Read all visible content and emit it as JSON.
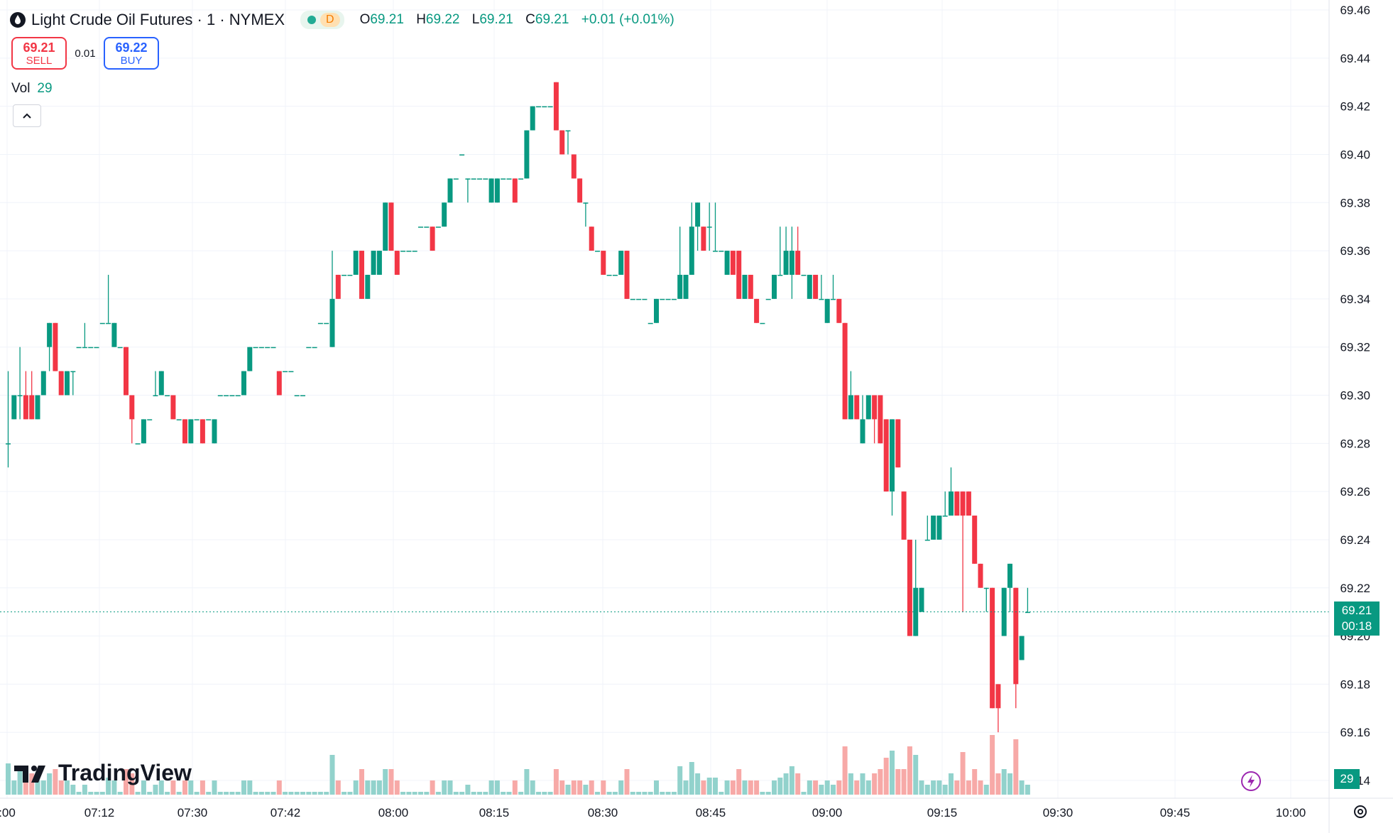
{
  "header": {
    "title": "Light Crude Oil Futures · 1 · NYMEX",
    "interval_badge": "D",
    "ohlc": [
      {
        "k": "O",
        "v": "69.21"
      },
      {
        "k": "H",
        "v": "69.22"
      },
      {
        "k": "L",
        "v": "69.21"
      },
      {
        "k": "C",
        "v": "69.21"
      }
    ],
    "change": "+0.01 (+0.01%)"
  },
  "trade": {
    "sell_price": "69.21",
    "sell_label": "SELL",
    "spread": "0.01",
    "buy_price": "69.22",
    "buy_label": "BUY"
  },
  "volume_legend": {
    "label": "Vol",
    "value": "29"
  },
  "collapse_icon": "chevron-up-icon",
  "logo_text": "TradingView",
  "last_price_tag": {
    "price": "69.21",
    "countdown": "00:18"
  },
  "volume_tag": "29",
  "colors": {
    "up": "#089981",
    "down": "#f23645",
    "up_vol": "#92d2cc",
    "down_vol": "#f7a9a7",
    "grid": "#f0f3fa"
  },
  "chart_data": {
    "type": "candlestick",
    "price_axis_ticks": [
      "69.46",
      "69.44",
      "69.42",
      "69.40",
      "69.38",
      "69.36",
      "69.34",
      "69.32",
      "69.30",
      "69.28",
      "69.26",
      "69.24",
      "69.22",
      "69.20",
      "69.18",
      "69.16",
      "69.14"
    ],
    "ylim": [
      69.14,
      69.46
    ],
    "time_axis_ticks": [
      ":00",
      "07:12",
      "07:30",
      "07:42",
      "08:00",
      "08:15",
      "08:30",
      "08:45",
      "09:00",
      "09:15",
      "09:30",
      "09:45",
      "10:00"
    ],
    "last_price": 69.21,
    "candles": [
      {
        "o": 69.28,
        "h": 69.31,
        "l": 69.27,
        "c": 69.28
      },
      {
        "o": 69.29,
        "h": 69.3,
        "l": 69.29,
        "c": 69.3
      },
      {
        "o": 69.3,
        "h": 69.32,
        "l": 69.29,
        "c": 69.3
      },
      {
        "o": 69.3,
        "h": 69.31,
        "l": 69.29,
        "c": 69.29
      },
      {
        "o": 69.3,
        "h": 69.31,
        "l": 69.29,
        "c": 69.29
      },
      {
        "o": 69.29,
        "h": 69.3,
        "l": 69.29,
        "c": 69.3
      },
      {
        "o": 69.3,
        "h": 69.31,
        "l": 69.3,
        "c": 69.31
      },
      {
        "o": 69.32,
        "h": 69.33,
        "l": 69.31,
        "c": 69.33
      },
      {
        "o": 69.33,
        "h": 69.33,
        "l": 69.31,
        "c": 69.31
      },
      {
        "o": 69.31,
        "h": 69.31,
        "l": 69.3,
        "c": 69.3
      },
      {
        "o": 69.3,
        "h": 69.31,
        "l": 69.3,
        "c": 69.31
      },
      {
        "o": 69.31,
        "h": 69.31,
        "l": 69.3,
        "c": 69.31
      },
      {
        "o": 69.32,
        "h": 69.32,
        "l": 69.32,
        "c": 69.32
      },
      {
        "o": 69.32,
        "h": 69.33,
        "l": 69.32,
        "c": 69.32
      },
      {
        "o": 69.32,
        "h": 69.32,
        "l": 69.32,
        "c": 69.32
      },
      {
        "o": 69.32,
        "h": 69.32,
        "l": 69.32,
        "c": 69.32
      },
      {
        "o": 69.33,
        "h": 69.33,
        "l": 69.33,
        "c": 69.33
      },
      {
        "o": 69.33,
        "h": 69.35,
        "l": 69.33,
        "c": 69.33
      },
      {
        "o": 69.32,
        "h": 69.33,
        "l": 69.32,
        "c": 69.33
      },
      {
        "o": 69.32,
        "h": 69.32,
        "l": 69.32,
        "c": 69.32
      },
      {
        "o": 69.32,
        "h": 69.32,
        "l": 69.3,
        "c": 69.3
      },
      {
        "o": 69.3,
        "h": 69.3,
        "l": 69.28,
        "c": 69.29
      },
      {
        "o": 69.28,
        "h": 69.28,
        "l": 69.28,
        "c": 69.28
      },
      {
        "o": 69.28,
        "h": 69.29,
        "l": 69.28,
        "c": 69.29
      },
      {
        "o": 69.29,
        "h": 69.29,
        "l": 69.29,
        "c": 69.29
      },
      {
        "o": 69.3,
        "h": 69.31,
        "l": 69.3,
        "c": 69.3
      },
      {
        "o": 69.3,
        "h": 69.31,
        "l": 69.3,
        "c": 69.31
      },
      {
        "o": 69.3,
        "h": 69.3,
        "l": 69.3,
        "c": 69.3
      },
      {
        "o": 69.3,
        "h": 69.3,
        "l": 69.29,
        "c": 69.29
      },
      {
        "o": 69.29,
        "h": 69.29,
        "l": 69.29,
        "c": 69.29
      },
      {
        "o": 69.29,
        "h": 69.29,
        "l": 69.28,
        "c": 69.28
      },
      {
        "o": 69.28,
        "h": 69.29,
        "l": 69.28,
        "c": 69.29
      },
      {
        "o": 69.29,
        "h": 69.29,
        "l": 69.29,
        "c": 69.29
      },
      {
        "o": 69.29,
        "h": 69.29,
        "l": 69.28,
        "c": 69.28
      },
      {
        "o": 69.29,
        "h": 69.29,
        "l": 69.29,
        "c": 69.29
      },
      {
        "o": 69.28,
        "h": 69.29,
        "l": 69.28,
        "c": 69.29
      },
      {
        "o": 69.3,
        "h": 69.3,
        "l": 69.3,
        "c": 69.3
      },
      {
        "o": 69.3,
        "h": 69.3,
        "l": 69.3,
        "c": 69.3
      },
      {
        "o": 69.3,
        "h": 69.3,
        "l": 69.3,
        "c": 69.3
      },
      {
        "o": 69.3,
        "h": 69.3,
        "l": 69.3,
        "c": 69.3
      },
      {
        "o": 69.3,
        "h": 69.31,
        "l": 69.3,
        "c": 69.31
      },
      {
        "o": 69.31,
        "h": 69.32,
        "l": 69.31,
        "c": 69.32
      },
      {
        "o": 69.32,
        "h": 69.32,
        "l": 69.32,
        "c": 69.32
      },
      {
        "o": 69.32,
        "h": 69.32,
        "l": 69.32,
        "c": 69.32
      },
      {
        "o": 69.32,
        "h": 69.32,
        "l": 69.32,
        "c": 69.32
      },
      {
        "o": 69.32,
        "h": 69.32,
        "l": 69.32,
        "c": 69.32
      },
      {
        "o": 69.31,
        "h": 69.31,
        "l": 69.3,
        "c": 69.3
      },
      {
        "o": 69.31,
        "h": 69.31,
        "l": 69.31,
        "c": 69.31
      },
      {
        "o": 69.31,
        "h": 69.31,
        "l": 69.31,
        "c": 69.31
      },
      {
        "o": 69.3,
        "h": 69.3,
        "l": 69.3,
        "c": 69.3
      },
      {
        "o": 69.3,
        "h": 69.3,
        "l": 69.3,
        "c": 69.3
      },
      {
        "o": 69.32,
        "h": 69.32,
        "l": 69.32,
        "c": 69.32
      },
      {
        "o": 69.32,
        "h": 69.32,
        "l": 69.32,
        "c": 69.32
      },
      {
        "o": 69.33,
        "h": 69.33,
        "l": 69.33,
        "c": 69.33
      },
      {
        "o": 69.33,
        "h": 69.33,
        "l": 69.33,
        "c": 69.33
      },
      {
        "o": 69.32,
        "h": 69.36,
        "l": 69.32,
        "c": 69.34
      },
      {
        "o": 69.35,
        "h": 69.35,
        "l": 69.34,
        "c": 69.34
      },
      {
        "o": 69.35,
        "h": 69.35,
        "l": 69.35,
        "c": 69.35
      },
      {
        "o": 69.35,
        "h": 69.35,
        "l": 69.35,
        "c": 69.35
      },
      {
        "o": 69.35,
        "h": 69.36,
        "l": 69.35,
        "c": 69.36
      },
      {
        "o": 69.36,
        "h": 69.36,
        "l": 69.34,
        "c": 69.34
      },
      {
        "o": 69.34,
        "h": 69.35,
        "l": 69.34,
        "c": 69.35
      },
      {
        "o": 69.35,
        "h": 69.36,
        "l": 69.35,
        "c": 69.36
      },
      {
        "o": 69.35,
        "h": 69.36,
        "l": 69.35,
        "c": 69.36
      },
      {
        "o": 69.36,
        "h": 69.38,
        "l": 69.36,
        "c": 69.38
      },
      {
        "o": 69.38,
        "h": 69.38,
        "l": 69.36,
        "c": 69.36
      },
      {
        "o": 69.36,
        "h": 69.36,
        "l": 69.35,
        "c": 69.35
      },
      {
        "o": 69.36,
        "h": 69.36,
        "l": 69.36,
        "c": 69.36
      },
      {
        "o": 69.36,
        "h": 69.36,
        "l": 69.36,
        "c": 69.36
      },
      {
        "o": 69.36,
        "h": 69.36,
        "l": 69.36,
        "c": 69.36
      },
      {
        "o": 69.37,
        "h": 69.37,
        "l": 69.37,
        "c": 69.37
      },
      {
        "o": 69.37,
        "h": 69.37,
        "l": 69.37,
        "c": 69.37
      },
      {
        "o": 69.37,
        "h": 69.37,
        "l": 69.36,
        "c": 69.36
      },
      {
        "o": 69.37,
        "h": 69.37,
        "l": 69.37,
        "c": 69.37
      },
      {
        "o": 69.37,
        "h": 69.38,
        "l": 69.37,
        "c": 69.38
      },
      {
        "o": 69.38,
        "h": 69.39,
        "l": 69.38,
        "c": 69.39
      },
      {
        "o": 69.39,
        "h": 69.39,
        "l": 69.39,
        "c": 69.39
      },
      {
        "o": 69.4,
        "h": 69.4,
        "l": 69.4,
        "c": 69.4
      },
      {
        "o": 69.39,
        "h": 69.39,
        "l": 69.38,
        "c": 69.39
      },
      {
        "o": 69.39,
        "h": 69.39,
        "l": 69.39,
        "c": 69.39
      },
      {
        "o": 69.39,
        "h": 69.39,
        "l": 69.39,
        "c": 69.39
      },
      {
        "o": 69.39,
        "h": 69.39,
        "l": 69.39,
        "c": 69.39
      },
      {
        "o": 69.38,
        "h": 69.39,
        "l": 69.38,
        "c": 69.39
      },
      {
        "o": 69.38,
        "h": 69.39,
        "l": 69.38,
        "c": 69.39
      },
      {
        "o": 69.39,
        "h": 69.39,
        "l": 69.39,
        "c": 69.39
      },
      {
        "o": 69.39,
        "h": 69.39,
        "l": 69.39,
        "c": 69.39
      },
      {
        "o": 69.39,
        "h": 69.39,
        "l": 69.38,
        "c": 69.38
      },
      {
        "o": 69.39,
        "h": 69.39,
        "l": 69.39,
        "c": 69.39
      },
      {
        "o": 69.39,
        "h": 69.41,
        "l": 69.39,
        "c": 69.41
      },
      {
        "o": 69.41,
        "h": 69.42,
        "l": 69.41,
        "c": 69.42
      },
      {
        "o": 69.42,
        "h": 69.42,
        "l": 69.42,
        "c": 69.42
      },
      {
        "o": 69.42,
        "h": 69.42,
        "l": 69.42,
        "c": 69.42
      },
      {
        "o": 69.42,
        "h": 69.42,
        "l": 69.42,
        "c": 69.42
      },
      {
        "o": 69.43,
        "h": 69.43,
        "l": 69.41,
        "c": 69.41
      },
      {
        "o": 69.41,
        "h": 69.41,
        "l": 69.4,
        "c": 69.4
      },
      {
        "o": 69.41,
        "h": 69.41,
        "l": 69.4,
        "c": 69.41
      },
      {
        "o": 69.4,
        "h": 69.4,
        "l": 69.39,
        "c": 69.39
      },
      {
        "o": 69.39,
        "h": 69.39,
        "l": 69.38,
        "c": 69.38
      },
      {
        "o": 69.38,
        "h": 69.38,
        "l": 69.37,
        "c": 69.38
      },
      {
        "o": 69.37,
        "h": 69.37,
        "l": 69.36,
        "c": 69.36
      },
      {
        "o": 69.36,
        "h": 69.36,
        "l": 69.36,
        "c": 69.36
      },
      {
        "o": 69.36,
        "h": 69.36,
        "l": 69.35,
        "c": 69.35
      },
      {
        "o": 69.35,
        "h": 69.35,
        "l": 69.35,
        "c": 69.35
      },
      {
        "o": 69.35,
        "h": 69.35,
        "l": 69.35,
        "c": 69.35
      },
      {
        "o": 69.35,
        "h": 69.36,
        "l": 69.35,
        "c": 69.36
      },
      {
        "o": 69.36,
        "h": 69.36,
        "l": 69.34,
        "c": 69.34
      },
      {
        "o": 69.34,
        "h": 69.34,
        "l": 69.34,
        "c": 69.34
      },
      {
        "o": 69.34,
        "h": 69.34,
        "l": 69.34,
        "c": 69.34
      },
      {
        "o": 69.34,
        "h": 69.34,
        "l": 69.34,
        "c": 69.34
      },
      {
        "o": 69.33,
        "h": 69.33,
        "l": 69.33,
        "c": 69.33
      },
      {
        "o": 69.33,
        "h": 69.34,
        "l": 69.33,
        "c": 69.34
      },
      {
        "o": 69.34,
        "h": 69.34,
        "l": 69.34,
        "c": 69.34
      },
      {
        "o": 69.34,
        "h": 69.34,
        "l": 69.34,
        "c": 69.34
      },
      {
        "o": 69.34,
        "h": 69.34,
        "l": 69.34,
        "c": 69.34
      },
      {
        "o": 69.34,
        "h": 69.37,
        "l": 69.34,
        "c": 69.35
      },
      {
        "o": 69.34,
        "h": 69.35,
        "l": 69.34,
        "c": 69.35
      },
      {
        "o": 69.35,
        "h": 69.38,
        "l": 69.35,
        "c": 69.37
      },
      {
        "o": 69.37,
        "h": 69.38,
        "l": 69.36,
        "c": 69.38
      },
      {
        "o": 69.37,
        "h": 69.37,
        "l": 69.36,
        "c": 69.36
      },
      {
        "o": 69.37,
        "h": 69.38,
        "l": 69.36,
        "c": 69.37
      },
      {
        "o": 69.36,
        "h": 69.38,
        "l": 69.36,
        "c": 69.36
      },
      {
        "o": 69.36,
        "h": 69.36,
        "l": 69.36,
        "c": 69.36
      },
      {
        "o": 69.35,
        "h": 69.36,
        "l": 69.35,
        "c": 69.36
      },
      {
        "o": 69.36,
        "h": 69.36,
        "l": 69.35,
        "c": 69.35
      },
      {
        "o": 69.36,
        "h": 69.36,
        "l": 69.34,
        "c": 69.34
      },
      {
        "o": 69.34,
        "h": 69.35,
        "l": 69.34,
        "c": 69.35
      },
      {
        "o": 69.35,
        "h": 69.35,
        "l": 69.34,
        "c": 69.34
      },
      {
        "o": 69.34,
        "h": 69.34,
        "l": 69.33,
        "c": 69.33
      },
      {
        "o": 69.33,
        "h": 69.33,
        "l": 69.33,
        "c": 69.33
      },
      {
        "o": 69.34,
        "h": 69.34,
        "l": 69.34,
        "c": 69.34
      },
      {
        "o": 69.34,
        "h": 69.35,
        "l": 69.34,
        "c": 69.35
      },
      {
        "o": 69.35,
        "h": 69.37,
        "l": 69.35,
        "c": 69.35
      },
      {
        "o": 69.35,
        "h": 69.37,
        "l": 69.35,
        "c": 69.36
      },
      {
        "o": 69.35,
        "h": 69.37,
        "l": 69.34,
        "c": 69.36
      },
      {
        "o": 69.36,
        "h": 69.37,
        "l": 69.35,
        "c": 69.35
      },
      {
        "o": 69.35,
        "h": 69.35,
        "l": 69.35,
        "c": 69.35
      },
      {
        "o": 69.34,
        "h": 69.35,
        "l": 69.34,
        "c": 69.35
      },
      {
        "o": 69.35,
        "h": 69.35,
        "l": 69.34,
        "c": 69.34
      },
      {
        "o": 69.34,
        "h": 69.35,
        "l": 69.34,
        "c": 69.34
      },
      {
        "o": 69.33,
        "h": 69.34,
        "l": 69.33,
        "c": 69.34
      },
      {
        "o": 69.34,
        "h": 69.35,
        "l": 69.34,
        "c": 69.34
      },
      {
        "o": 69.34,
        "h": 69.34,
        "l": 69.33,
        "c": 69.33
      },
      {
        "o": 69.33,
        "h": 69.33,
        "l": 69.29,
        "c": 69.29
      },
      {
        "o": 69.29,
        "h": 69.31,
        "l": 69.29,
        "c": 69.3
      },
      {
        "o": 69.3,
        "h": 69.3,
        "l": 69.29,
        "c": 69.29
      },
      {
        "o": 69.28,
        "h": 69.3,
        "l": 69.28,
        "c": 69.29
      },
      {
        "o": 69.29,
        "h": 69.3,
        "l": 69.29,
        "c": 69.3
      },
      {
        "o": 69.3,
        "h": 69.3,
        "l": 69.28,
        "c": 69.29
      },
      {
        "o": 69.3,
        "h": 69.3,
        "l": 69.28,
        "c": 69.28
      },
      {
        "o": 69.29,
        "h": 69.29,
        "l": 69.26,
        "c": 69.26
      },
      {
        "o": 69.26,
        "h": 69.29,
        "l": 69.25,
        "c": 69.29
      },
      {
        "o": 69.29,
        "h": 69.29,
        "l": 69.27,
        "c": 69.27
      },
      {
        "o": 69.26,
        "h": 69.26,
        "l": 69.24,
        "c": 69.24
      },
      {
        "o": 69.24,
        "h": 69.24,
        "l": 69.2,
        "c": 69.2
      },
      {
        "o": 69.2,
        "h": 69.24,
        "l": 69.2,
        "c": 69.22
      },
      {
        "o": 69.21,
        "h": 69.22,
        "l": 69.21,
        "c": 69.22
      },
      {
        "o": 69.24,
        "h": 69.25,
        "l": 69.24,
        "c": 69.24
      },
      {
        "o": 69.24,
        "h": 69.25,
        "l": 69.24,
        "c": 69.25
      },
      {
        "o": 69.24,
        "h": 69.25,
        "l": 69.24,
        "c": 69.25
      },
      {
        "o": 69.25,
        "h": 69.26,
        "l": 69.25,
        "c": 69.25
      },
      {
        "o": 69.25,
        "h": 69.27,
        "l": 69.25,
        "c": 69.26
      },
      {
        "o": 69.26,
        "h": 69.26,
        "l": 69.25,
        "c": 69.25
      },
      {
        "o": 69.26,
        "h": 69.26,
        "l": 69.21,
        "c": 69.25
      },
      {
        "o": 69.26,
        "h": 69.26,
        "l": 69.25,
        "c": 69.25
      },
      {
        "o": 69.25,
        "h": 69.25,
        "l": 69.23,
        "c": 69.23
      },
      {
        "o": 69.23,
        "h": 69.23,
        "l": 69.22,
        "c": 69.22
      },
      {
        "o": 69.22,
        "h": 69.22,
        "l": 69.21,
        "c": 69.22
      },
      {
        "o": 69.22,
        "h": 69.22,
        "l": 69.17,
        "c": 69.17
      },
      {
        "o": 69.18,
        "h": 69.18,
        "l": 69.16,
        "c": 69.17
      },
      {
        "o": 69.2,
        "h": 69.22,
        "l": 69.2,
        "c": 69.22
      },
      {
        "o": 69.22,
        "h": 69.23,
        "l": 69.21,
        "c": 69.23
      },
      {
        "o": 69.22,
        "h": 69.22,
        "l": 69.17,
        "c": 69.18
      },
      {
        "o": 69.19,
        "h": 69.2,
        "l": 69.19,
        "c": 69.2
      },
      {
        "o": 69.21,
        "h": 69.22,
        "l": 69.21,
        "c": 69.21
      }
    ],
    "volume_note": "volume histogram bars colored by candle direction, last volume 29"
  }
}
